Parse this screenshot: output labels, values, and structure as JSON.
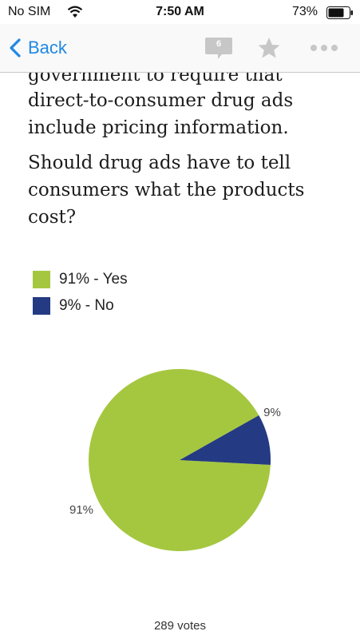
{
  "status_bar": {
    "carrier": "No SIM",
    "time": "7:50 AM",
    "battery": "73%"
  },
  "nav": {
    "back_label": "Back",
    "comment_count": "6",
    "icons": [
      "chevron-left-icon",
      "comment-icon",
      "star-icon",
      "more-icon"
    ]
  },
  "article": {
    "partial_line": "government to require that",
    "paragraph": "direct-to-consumer drug ads include pricing information.",
    "question": "Should drug ads have to tell consumers what the products cost?"
  },
  "colors": {
    "yes": "#a5c740",
    "no": "#243a82",
    "accent": "#1f88e5"
  },
  "chart_data": {
    "type": "pie",
    "slices": [
      {
        "label": "91% - Yes",
        "value": 91,
        "data_label": "91%",
        "color": "#a5c740"
      },
      {
        "label": "9% - No",
        "value": 9,
        "data_label": "9%",
        "color": "#243a82"
      }
    ],
    "legend": "top-left"
  },
  "footer": {
    "votes": "289 votes"
  }
}
